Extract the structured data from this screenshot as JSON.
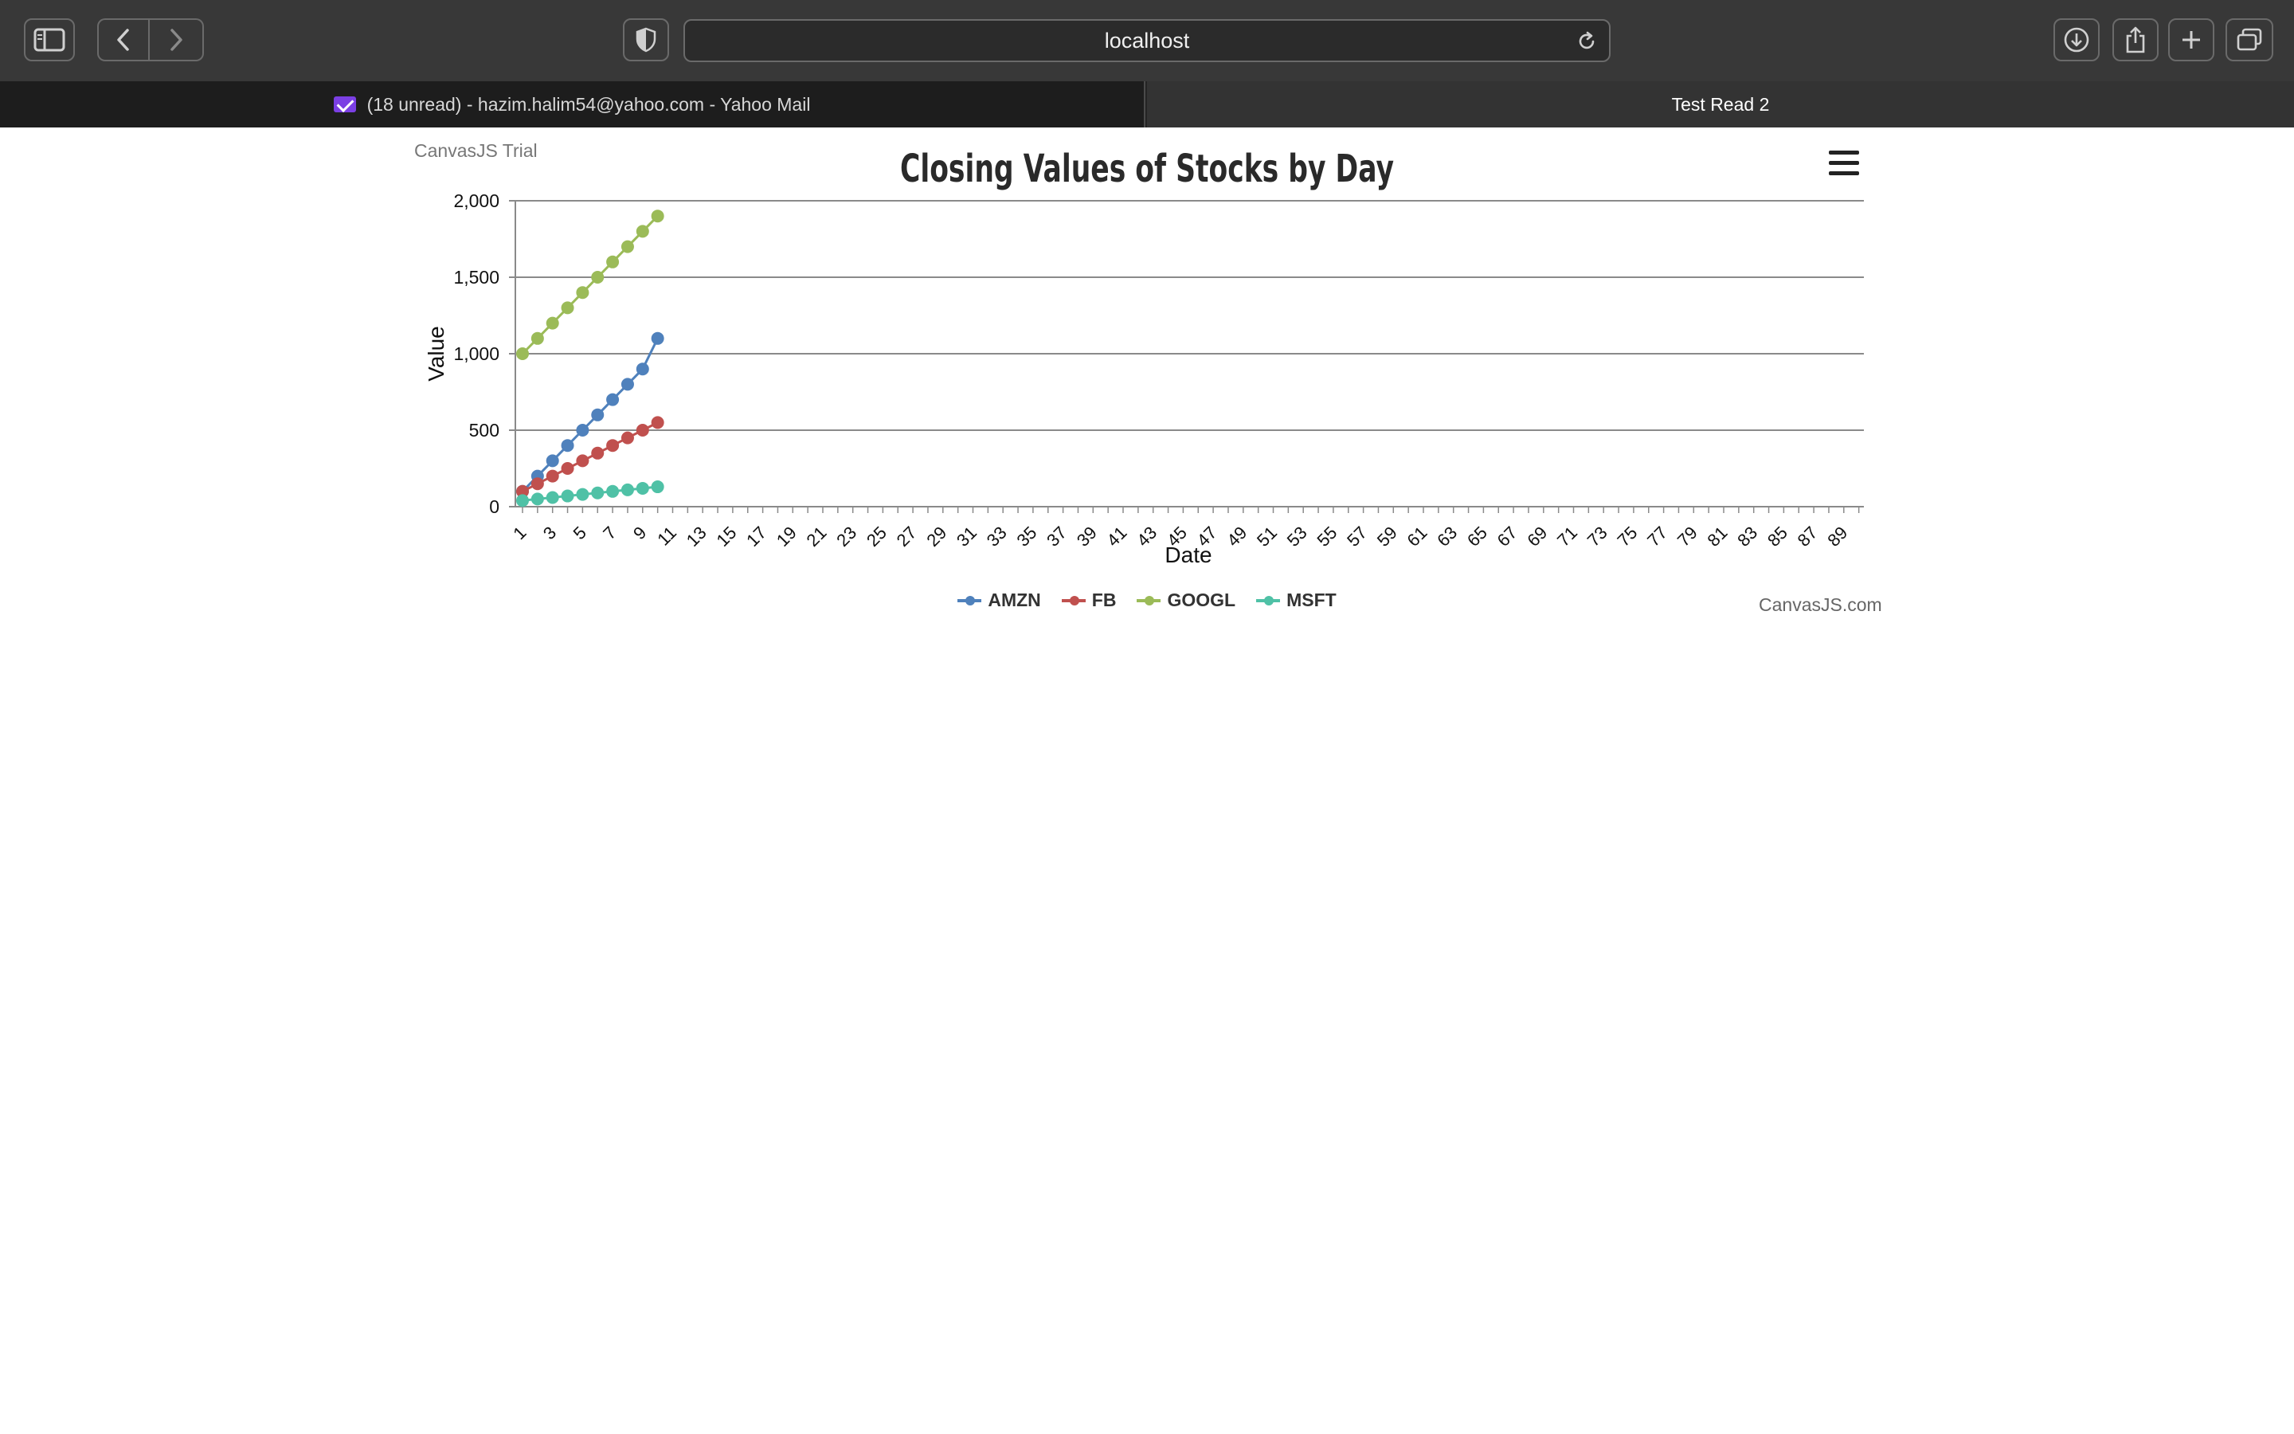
{
  "browser": {
    "url": "localhost",
    "tabs": [
      {
        "label": "(18 unread) - hazim.halim54@yahoo.com - Yahoo Mail",
        "active": false
      },
      {
        "label": "Test Read 2",
        "active": true
      }
    ],
    "icons": [
      "sidebar-icon",
      "back-icon",
      "forward-icon",
      "privacy-shield-icon",
      "reload-icon",
      "download-icon",
      "share-icon",
      "new-tab-icon",
      "tab-overview-icon"
    ]
  },
  "page": {
    "trial_label": "CanvasJS Trial",
    "credit_label": "CanvasJS.com"
  },
  "colors": {
    "AMZN": "#4f81bc",
    "FB": "#c0504e",
    "GOOGL": "#9bbb58",
    "MSFT": "#4fc1a6"
  },
  "chart_data": {
    "type": "line",
    "title": "Closing Values of Stocks by Day",
    "xlabel": "Date",
    "ylabel": "Value",
    "ylim": [
      0,
      2000
    ],
    "yticks": [
      0,
      500,
      1000,
      1500,
      2000
    ],
    "ytick_labels": [
      "0",
      "500",
      "1,000",
      "1,500",
      "2,000"
    ],
    "xlim": [
      1,
      90
    ],
    "xticks": [
      1,
      3,
      5,
      7,
      9,
      11,
      13,
      15,
      17,
      19,
      21,
      23,
      25,
      27,
      29,
      31,
      33,
      35,
      37,
      39,
      41,
      43,
      45,
      47,
      49,
      51,
      53,
      55,
      57,
      59,
      61,
      63,
      65,
      67,
      69,
      71,
      73,
      75,
      77,
      79,
      81,
      83,
      85,
      87,
      89
    ],
    "grid": true,
    "legend": "bottom",
    "x": [
      1,
      2,
      3,
      4,
      5,
      6,
      7,
      8,
      9,
      10
    ],
    "series": [
      {
        "name": "AMZN",
        "values": [
          100,
          200,
          300,
          400,
          500,
          600,
          700,
          800,
          900,
          1100
        ]
      },
      {
        "name": "FB",
        "values": [
          100,
          150,
          200,
          250,
          300,
          350,
          400,
          450,
          500,
          550
        ]
      },
      {
        "name": "GOOGL",
        "values": [
          1000,
          1100,
          1200,
          1300,
          1400,
          1500,
          1600,
          1700,
          1800,
          1900
        ]
      },
      {
        "name": "MSFT",
        "values": [
          40,
          50,
          60,
          70,
          80,
          90,
          100,
          110,
          120,
          130
        ]
      }
    ]
  }
}
